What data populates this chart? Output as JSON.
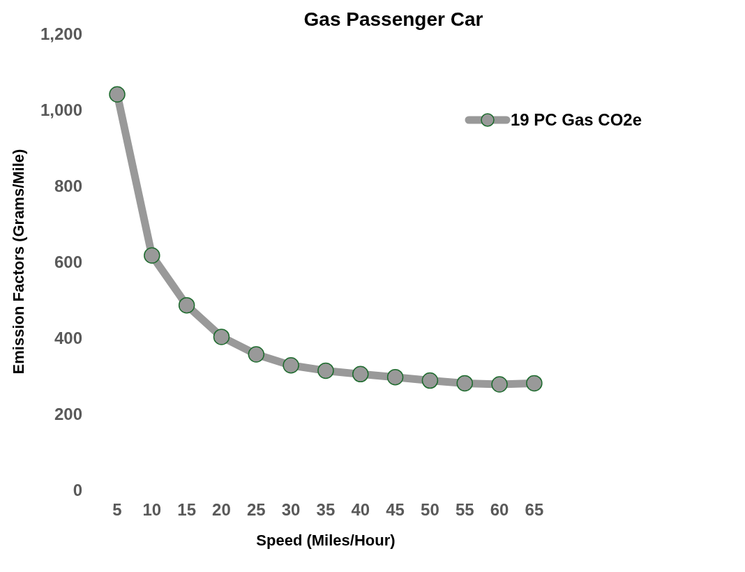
{
  "chart_data": {
    "type": "line",
    "title": "Gas Passenger Car",
    "xlabel": "Speed (Miles/Hour)",
    "ylabel": "Emission Factors (Grams/Mile)",
    "categories": [
      "5",
      "10",
      "15",
      "20",
      "25",
      "30",
      "35",
      "40",
      "45",
      "50",
      "55",
      "60",
      "65"
    ],
    "series": [
      {
        "name": "19 PC Gas CO2e",
        "color": "#999999",
        "values": [
          1040,
          616,
          485,
          402,
          356,
          327,
          313,
          304,
          296,
          287,
          280,
          277,
          280
        ]
      }
    ],
    "ylim": [
      0,
      1200
    ],
    "yticks": [
      0,
      200,
      400,
      600,
      800,
      {
        "value": 1000,
        "label": "1,000"
      },
      {
        "value": 1200,
        "label": "1,200"
      }
    ],
    "grid": false,
    "legend": "top right",
    "marker": "circle",
    "line_style": "solid"
  }
}
